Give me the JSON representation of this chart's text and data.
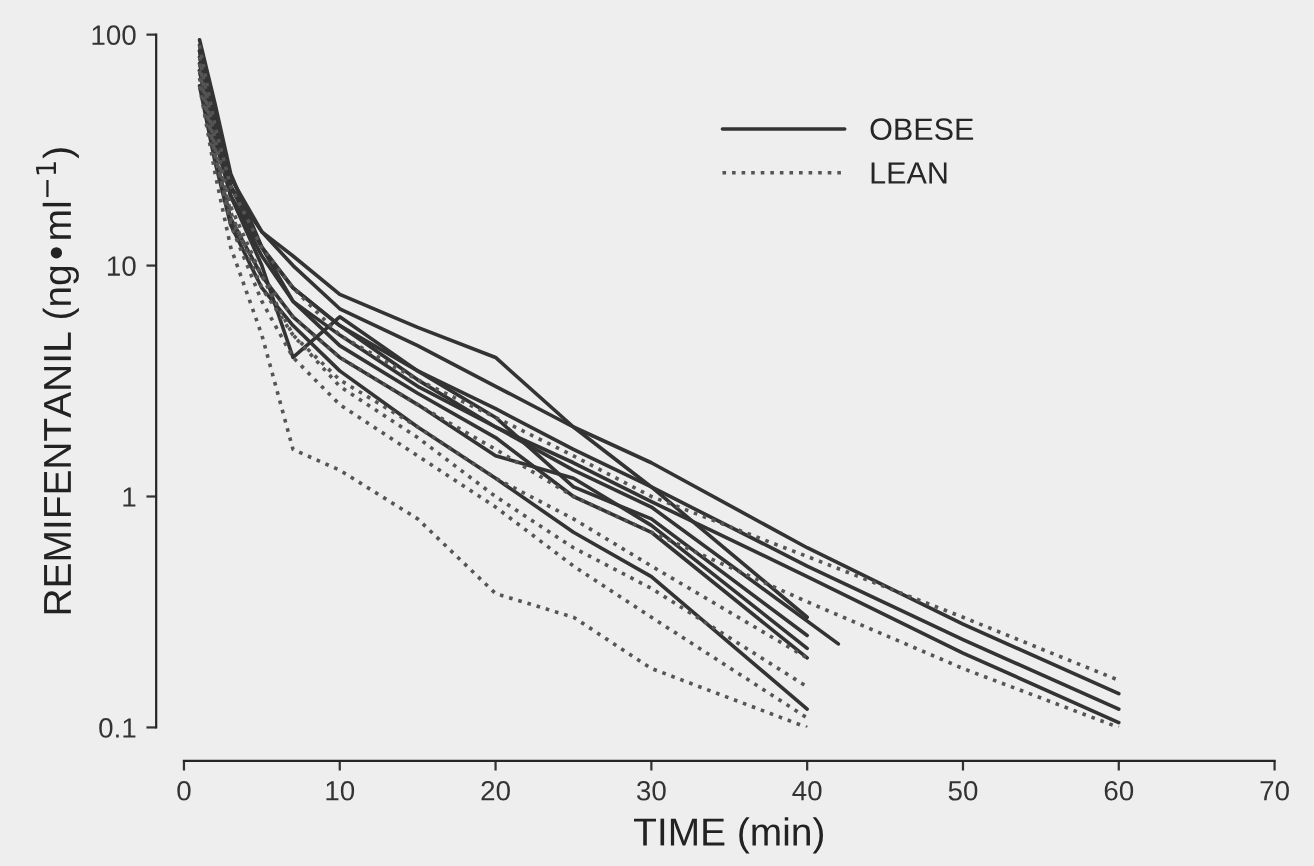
{
  "chart_data": {
    "type": "line",
    "xlabel": "TIME (min)",
    "ylabel": "REMIFENTANIL (ng•ml$^{−1}$)",
    "log": "y",
    "xlim": [
      0,
      70
    ],
    "ylim": [
      0.1,
      100
    ],
    "xticks": [
      0,
      10,
      20,
      30,
      40,
      50,
      60,
      70
    ],
    "yticks": [
      {
        "value": 0.1,
        "label": "0.1"
      },
      1,
      10,
      100
    ],
    "grid": false,
    "legend": "top right",
    "marker": "none",
    "x": [
      1,
      2,
      3,
      5,
      7,
      10,
      15,
      20,
      25,
      30,
      40
    ],
    "series": [
      {
        "name": "OBESE",
        "color": "#333333",
        "line_style": "solid",
        "values": [
          90,
          40,
          22,
          14,
          11,
          7.5,
          5.4,
          4.0,
          2.0,
          1.1,
          0.3
        ]
      },
      {
        "color": "#333333",
        "line_style": "solid",
        "x": [
          1,
          2,
          3,
          5,
          7,
          10,
          15,
          20,
          25,
          30,
          40,
          50,
          60
        ],
        "values": [
          80,
          42,
          24,
          14,
          10,
          6.5,
          4.5,
          3.0,
          2.0,
          1.4,
          0.6,
          0.28,
          0.14
        ]
      },
      {
        "color": "#333333",
        "line_style": "solid",
        "x": [
          1,
          2,
          3,
          5,
          7,
          10,
          15,
          20,
          25,
          30,
          40,
          50,
          60
        ],
        "values": [
          70,
          35,
          20,
          12,
          8,
          5.5,
          3.5,
          2.4,
          1.6,
          1.1,
          0.5,
          0.24,
          0.12
        ]
      },
      {
        "color": "#333333",
        "line_style": "solid",
        "x": [
          1,
          2,
          3,
          5,
          7,
          10,
          15,
          20,
          25,
          30,
          40,
          50,
          60
        ],
        "values": [
          75,
          38,
          20,
          11,
          7,
          5.0,
          3.0,
          2.0,
          1.4,
          0.95,
          0.45,
          0.21,
          0.105
        ]
      },
      {
        "color": "#333333",
        "line_style": "solid",
        "values": [
          85,
          45,
          20,
          10,
          4,
          6.0,
          3.5,
          2.2,
          1.1,
          0.8,
          0.25
        ]
      },
      {
        "color": "#333333",
        "line_style": "solid",
        "values": [
          95,
          50,
          25,
          12,
          7,
          4.5,
          2.8,
          1.8,
          1.0,
          0.7,
          0.2
        ]
      },
      {
        "color": "#333333",
        "line_style": "solid",
        "values": [
          70,
          30,
          16,
          9,
          6,
          4.0,
          2.5,
          1.5,
          1.2,
          0.75,
          0.22
        ]
      },
      {
        "color": "#333333",
        "line_style": "solid",
        "values": [
          60,
          28,
          15,
          8,
          5.5,
          3.5,
          2.0,
          1.2,
          0.7,
          0.45,
          0.12
        ]
      },
      {
        "color": "#333333",
        "line_style": "solid",
        "x": [
          1,
          2,
          3,
          5,
          7,
          10,
          15,
          20,
          25,
          30,
          42
        ],
        "values": [
          85,
          40,
          22,
          12,
          8,
          5.5,
          3.2,
          2.0,
          1.3,
          0.9,
          0.23
        ]
      },
      {
        "name": "LEAN",
        "color": "#555555",
        "line_style": "dotted",
        "values": [
          60,
          25,
          12,
          5,
          1.6,
          1.3,
          0.8,
          0.38,
          0.3,
          0.18,
          0.1
        ]
      },
      {
        "color": "#555555",
        "line_style": "dotted",
        "values": [
          70,
          30,
          15,
          7,
          4,
          2.5,
          1.5,
          0.9,
          0.5,
          0.3,
          0.11
        ]
      },
      {
        "color": "#555555",
        "line_style": "dotted",
        "values": [
          80,
          35,
          18,
          9,
          5,
          3.2,
          2.0,
          1.2,
          0.8,
          0.5,
          0.2
        ]
      },
      {
        "color": "#555555",
        "line_style": "dotted",
        "x": [
          1,
          2,
          3,
          5,
          7,
          10,
          15,
          20,
          25,
          30,
          40,
          50,
          60
        ],
        "values": [
          90,
          40,
          22,
          12,
          8,
          5.0,
          3.2,
          2.2,
          1.5,
          1.0,
          0.55,
          0.3,
          0.16
        ]
      },
      {
        "color": "#555555",
        "line_style": "dotted",
        "x": [
          1,
          2,
          3,
          5,
          7,
          10,
          15,
          20,
          25,
          30,
          40,
          50,
          60
        ],
        "values": [
          65,
          30,
          16,
          9,
          6,
          4.0,
          2.5,
          1.6,
          1.0,
          0.7,
          0.35,
          0.18,
          0.1
        ]
      },
      {
        "color": "#555555",
        "line_style": "dotted",
        "values": [
          75,
          32,
          17,
          8,
          5,
          3.0,
          1.8,
          1.0,
          0.6,
          0.4,
          0.15
        ]
      }
    ]
  }
}
